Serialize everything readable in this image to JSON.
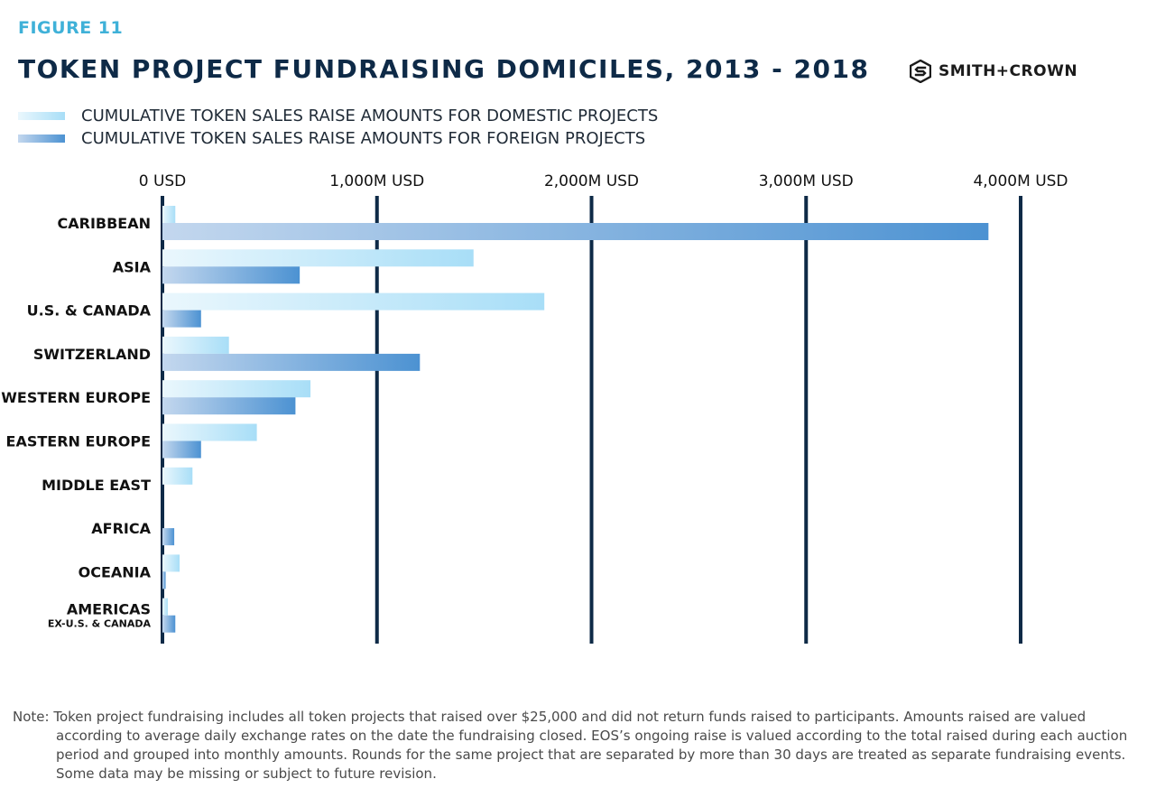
{
  "figure_label": "FIGURE 11",
  "brand": {
    "name": "SMITH+CROWN",
    "logo_icon": "smith-crown-logo-icon"
  },
  "colors": {
    "domestic_start": "#eaf7fd",
    "domestic_end": "#a8def7",
    "foreign_start": "#c3d7ee",
    "foreign_end": "#4c92d2",
    "gridline": "#0e2a47",
    "title": "#0e2a47",
    "figure_label": "#3fb1d8"
  },
  "chart_data": {
    "type": "bar",
    "orientation": "horizontal",
    "title": "TOKEN PROJECT FUNDRAISING DOMICILES, 2013 - 2018",
    "xlabel": "",
    "ylabel": "",
    "xlim": [
      0,
      4000
    ],
    "x_ticks": [
      0,
      1000,
      2000,
      3000,
      4000
    ],
    "x_tick_labels": [
      "0 USD",
      "1,000M USD",
      "2,000M USD",
      "3,000M USD",
      "4,000M USD"
    ],
    "grid": true,
    "legend_position": "top-left",
    "categories": [
      {
        "label": "CARIBBEAN",
        "sublabel": ""
      },
      {
        "label": "ASIA",
        "sublabel": ""
      },
      {
        "label": "U.S. & CANADA",
        "sublabel": ""
      },
      {
        "label": "SWITZERLAND",
        "sublabel": ""
      },
      {
        "label": "WESTERN EUROPE",
        "sublabel": ""
      },
      {
        "label": "EASTERN EUROPE",
        "sublabel": ""
      },
      {
        "label": "MIDDLE EAST",
        "sublabel": ""
      },
      {
        "label": "AFRICA",
        "sublabel": ""
      },
      {
        "label": "OCEANIA",
        "sublabel": ""
      },
      {
        "label": "AMERICAS",
        "sublabel": "EX-U.S. & CANADA"
      }
    ],
    "series": [
      {
        "name": "CUMULATIVE TOKEN SALES RAISE AMOUNTS FOR DOMESTIC PROJECTS",
        "values": [
          60,
          1450,
          1780,
          310,
          690,
          440,
          140,
          0,
          80,
          25
        ]
      },
      {
        "name": "CUMULATIVE TOKEN SALES RAISE AMOUNTS FOR FOREIGN PROJECTS",
        "values": [
          3850,
          640,
          180,
          1200,
          620,
          180,
          0,
          55,
          15,
          60
        ]
      }
    ]
  },
  "note": "Note: Token project fundraising includes all token projects that raised over $25,000 and did not return funds raised to participants. Amounts raised are valued according to average daily exchange rates on the date the fundraising closed. EOS’s ongoing raise is valued according to the total raised during each auction period and grouped into monthly amounts. Rounds for the same project that are separated by more than 30 days are treated as separate fundraising events. Some data may be missing or subject to future revision."
}
